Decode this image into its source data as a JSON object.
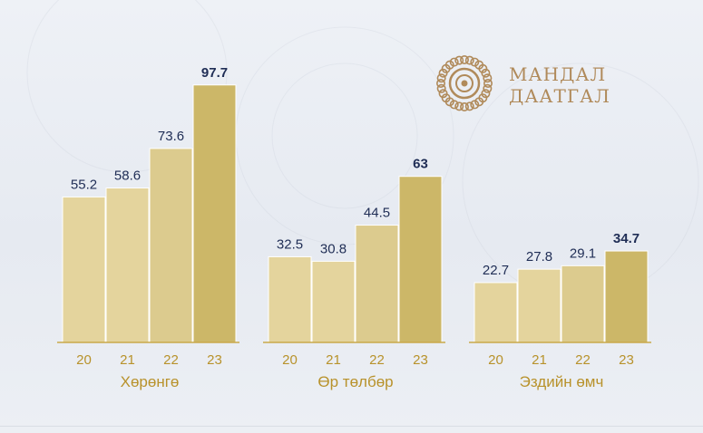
{
  "colors": {
    "bar_light": "#e4d49d",
    "bar_mid": "#dccb8e",
    "bar_latest": "#ccb768",
    "value_text": "#1f2d55",
    "axis_text": "#b8922b",
    "baseline": "#c9a94a",
    "logo": "#b08a5a"
  },
  "logo": {
    "line1": "МАНДАЛ",
    "line2": "ДААТГАЛ",
    "icon": "mandala-sun-icon"
  },
  "chart_data": {
    "type": "bar",
    "ylim": [
      0,
      110
    ],
    "groups": [
      {
        "label": "Хөрөнгө",
        "categories": [
          "20",
          "21",
          "22",
          "23"
        ],
        "values": [
          55.2,
          58.6,
          73.6,
          97.7
        ],
        "value_labels": [
          "55.2",
          "58.6",
          "73.6",
          "97.7"
        ]
      },
      {
        "label": "Өр төлбөр",
        "categories": [
          "20",
          "21",
          "22",
          "23"
        ],
        "values": [
          32.5,
          30.8,
          44.5,
          63
        ],
        "value_labels": [
          "32.5",
          "30.8",
          "44.5",
          "63"
        ]
      },
      {
        "label": "Эздийн өмч",
        "categories": [
          "20",
          "21",
          "22",
          "23"
        ],
        "values": [
          22.7,
          27.8,
          29.1,
          34.7
        ],
        "value_labels": [
          "22.7",
          "27.8",
          "29.1",
          "34.7"
        ]
      }
    ]
  }
}
